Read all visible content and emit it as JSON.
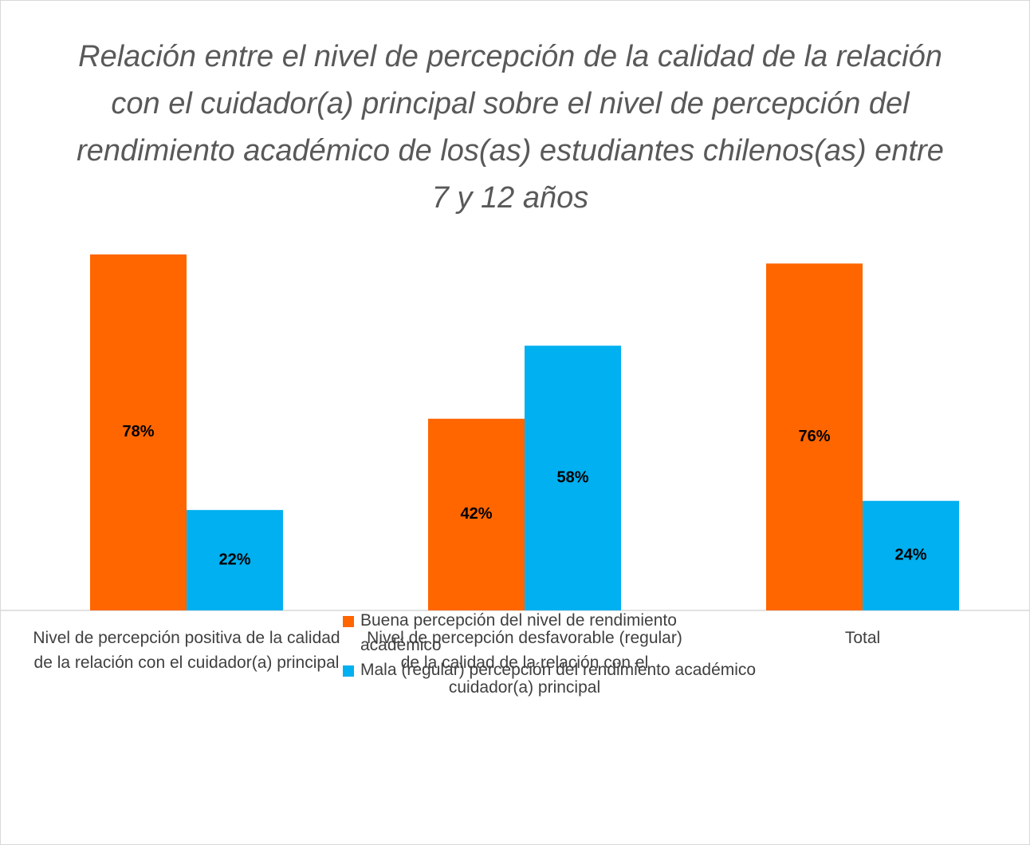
{
  "chart_data": {
    "type": "bar",
    "title": "Relación entre el nivel de percepción de la calidad de la relación con el cuidador(a) principal sobre el nivel de percepción del rendimiento académico de los(as) estudiantes chilenos(as) entre 7 y 12 años",
    "categories": [
      "Nivel de percepción positiva de la calidad de la relación con el cuidador(a) principal",
      "Nivel de percepción desfavorable (regular) de la calidad de la relación con el cuidador(a) principal",
      "Total"
    ],
    "series": [
      {
        "name": "Buena percepción del nivel de rendimiento académico",
        "color": "#ff6600",
        "values": [
          78,
          42,
          76
        ],
        "value_labels": [
          "78%",
          "42%",
          "76%"
        ]
      },
      {
        "name": "Mala (regular) percepción del rendimiento académico",
        "color": "#00b0f0",
        "values": [
          22,
          58,
          24
        ],
        "value_labels": [
          "22%",
          "58%",
          "24%"
        ]
      }
    ]
  }
}
